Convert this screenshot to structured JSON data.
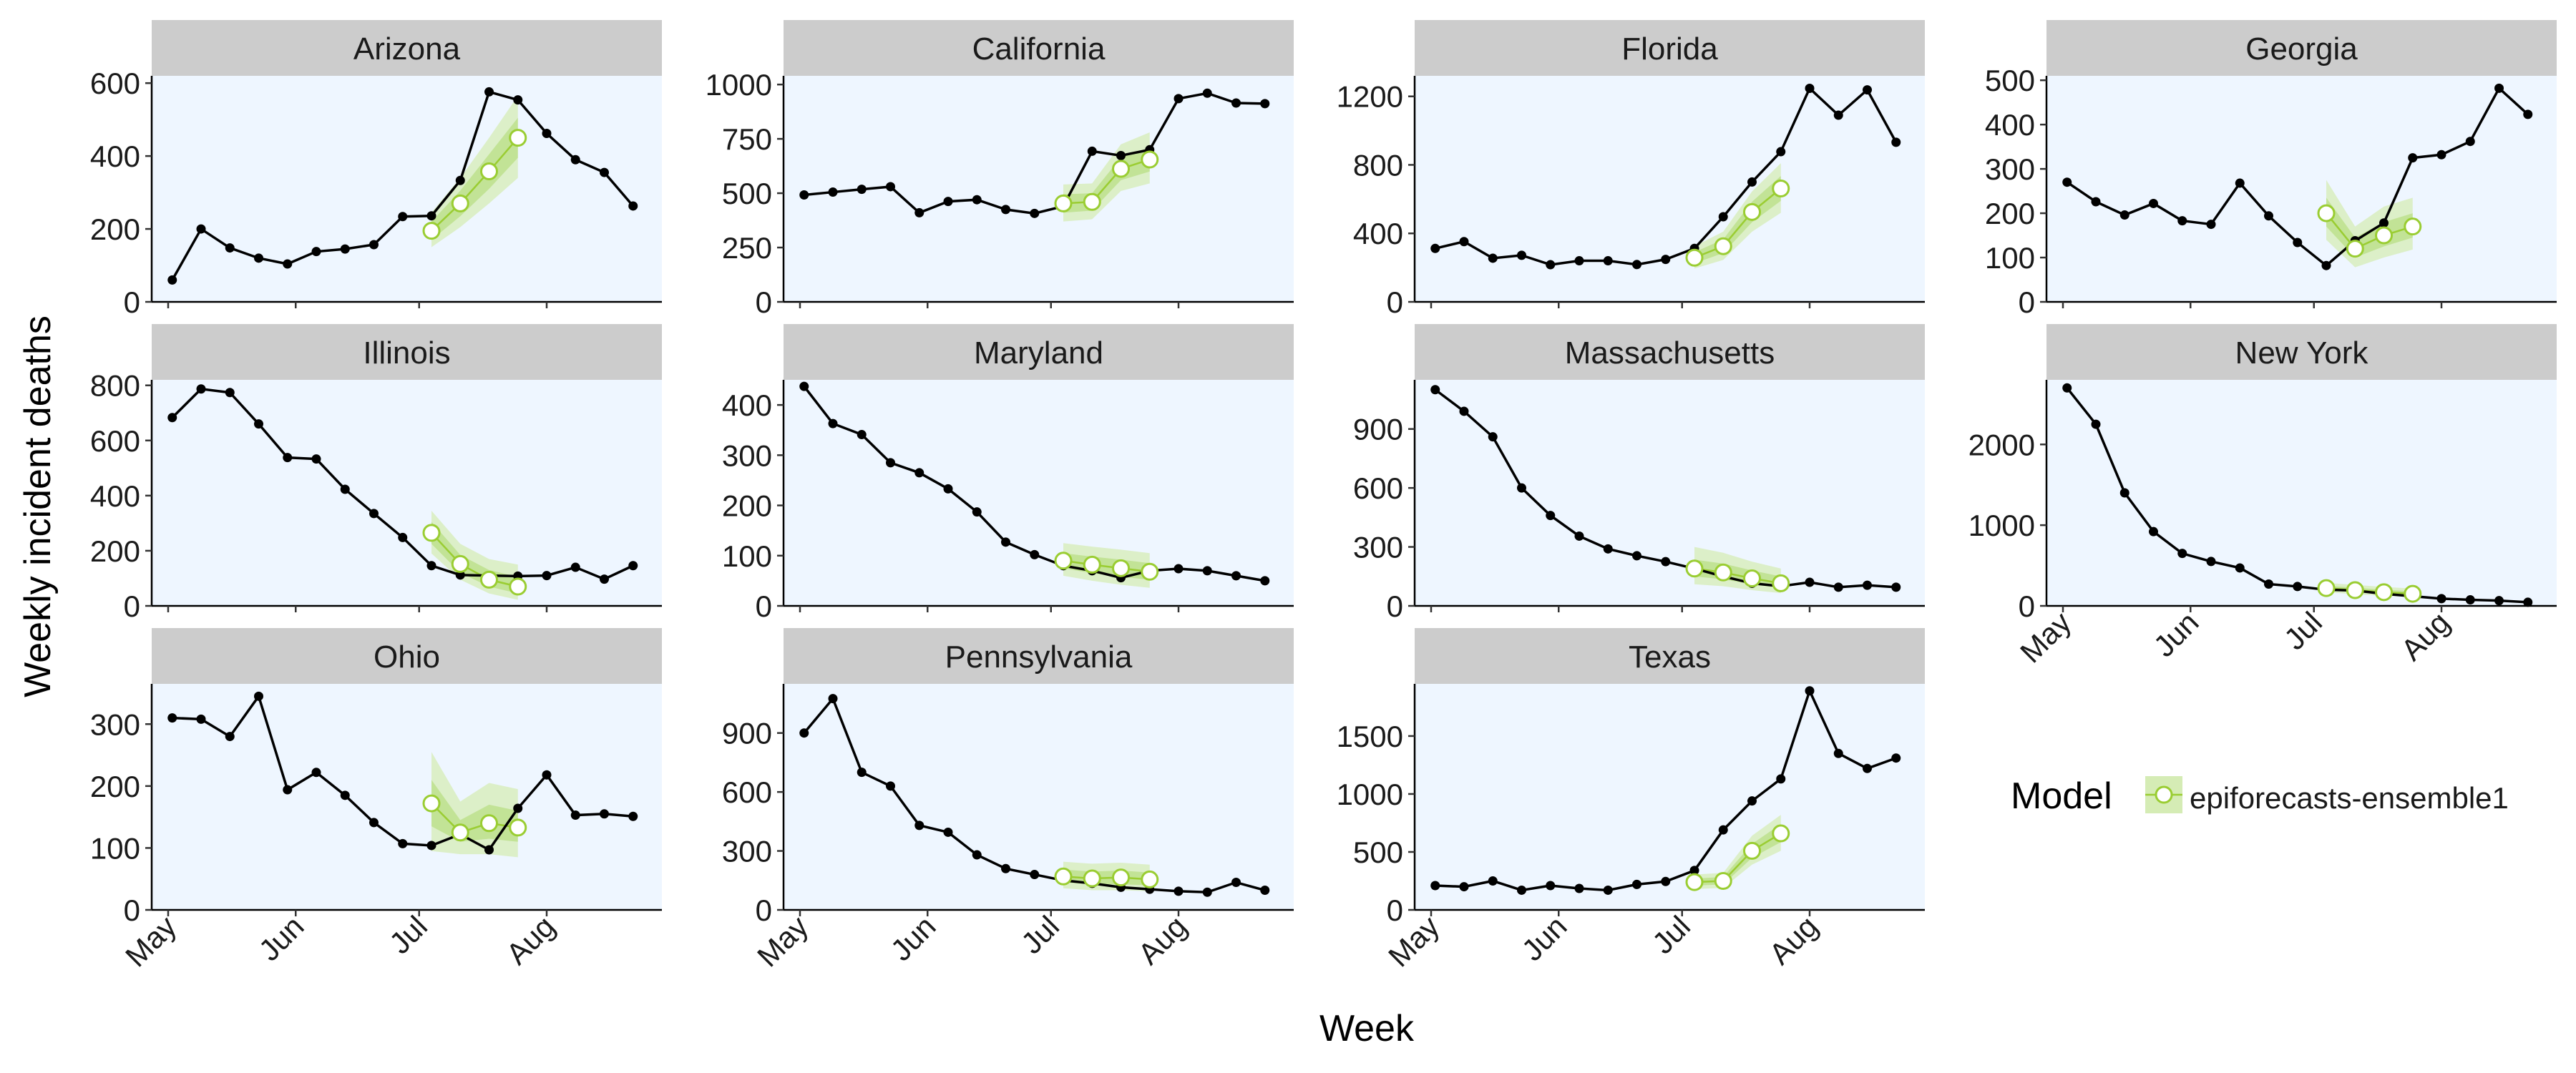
{
  "chart_data": {
    "type": "line",
    "xlabel": "Week",
    "ylabel": "Weekly incident deaths",
    "x_tick_labels": [
      "May",
      "Jun",
      "Jul",
      "Aug"
    ],
    "x_tick_dates": [
      "2020-05-01",
      "2020-06-01",
      "2020-07-01",
      "2020-08-01"
    ],
    "x_range": [
      "2020-04-27",
      "2020-08-29"
    ],
    "observed_dates": [
      "2020-05-02",
      "2020-05-09",
      "2020-05-16",
      "2020-05-23",
      "2020-05-30",
      "2020-06-06",
      "2020-06-13",
      "2020-06-20",
      "2020-06-27",
      "2020-07-04",
      "2020-07-11",
      "2020-07-18",
      "2020-07-25",
      "2020-08-01",
      "2020-08-08",
      "2020-08-15",
      "2020-08-22"
    ],
    "forecast_dates": [
      "2020-07-04",
      "2020-07-11",
      "2020-07-18",
      "2020-07-25"
    ],
    "legend": {
      "title": "Model",
      "label": "epiforecasts-ensemble1",
      "position": "right"
    },
    "colors": {
      "observed": "#000000",
      "forecast": "#9acd32",
      "band_outer": "#d5ecb5",
      "band_inner": "#b9df85",
      "panel_bg": "#eef6ff",
      "strip_bg": "#cccccc"
    },
    "panels": [
      {
        "state": "Arizona",
        "ylim": [
          0,
          620
        ],
        "yticks": [
          0,
          200,
          400,
          600
        ],
        "observed": [
          60,
          200,
          148,
          120,
          104,
          138,
          145,
          157,
          234,
          236,
          333,
          576,
          554,
          462,
          390,
          355,
          263
        ],
        "forecast": [
          195,
          270,
          358,
          450
        ],
        "lower50": [
          170,
          235,
          310,
          395
        ],
        "upper50": [
          220,
          305,
          405,
          505
        ],
        "lower90": [
          150,
          205,
          270,
          340
        ],
        "upper90": [
          245,
          340,
          450,
          565
        ]
      },
      {
        "state": "California",
        "ylim": [
          0,
          1040
        ],
        "yticks": [
          0,
          250,
          500,
          750,
          1000
        ],
        "observed": [
          492,
          505,
          518,
          530,
          410,
          462,
          470,
          425,
          407,
          440,
          693,
          673,
          700,
          935,
          960,
          915,
          912
        ],
        "forecast": [
          453,
          460,
          612,
          655
        ],
        "lower50": [
          410,
          420,
          560,
          600
        ],
        "upper50": [
          495,
          500,
          665,
          710
        ],
        "lower90": [
          370,
          380,
          510,
          545
        ],
        "upper90": [
          540,
          545,
          725,
          780
        ]
      },
      {
        "state": "Florida",
        "ylim": [
          0,
          1320
        ],
        "yticks": [
          0,
          400,
          800,
          1200
        ],
        "observed": [
          312,
          352,
          255,
          272,
          217,
          240,
          240,
          218,
          248,
          312,
          497,
          700,
          877,
          1247,
          1090,
          1238,
          932
        ],
        "forecast": [
          258,
          325,
          525,
          662
        ],
        "lower50": [
          225,
          285,
          465,
          590
        ],
        "upper50": [
          290,
          365,
          585,
          735
        ],
        "lower90": [
          195,
          245,
          410,
          520
        ],
        "upper90": [
          325,
          410,
          645,
          810
        ]
      },
      {
        "state": "Georgia",
        "ylim": [
          0,
          510
        ],
        "yticks": [
          0,
          100,
          200,
          300,
          400,
          500
        ],
        "observed": [
          270,
          226,
          196,
          222,
          183,
          175,
          268,
          194,
          134,
          82,
          138,
          178,
          325,
          332,
          362,
          482,
          423
        ],
        "forecast": [
          200,
          120,
          150,
          170
        ],
        "lower50": [
          170,
          100,
          125,
          145
        ],
        "upper50": [
          235,
          145,
          180,
          200
        ],
        "lower90": [
          140,
          78,
          100,
          118
        ],
        "upper90": [
          275,
          170,
          215,
          235
        ]
      },
      {
        "state": "Illinois",
        "ylim": [
          0,
          820
        ],
        "yticks": [
          0,
          200,
          400,
          600,
          800
        ],
        "observed": [
          683,
          787,
          774,
          660,
          538,
          533,
          423,
          335,
          248,
          146,
          112,
          110,
          108,
          110,
          140,
          97,
          146
        ],
        "forecast": [
          265,
          152,
          95,
          70
        ],
        "lower50": [
          225,
          120,
          70,
          45
        ],
        "upper50": [
          305,
          185,
          130,
          105
        ],
        "lower90": [
          190,
          95,
          45,
          22
        ],
        "upper90": [
          345,
          225,
          170,
          150
        ]
      },
      {
        "state": "Maryland",
        "ylim": [
          0,
          450
        ],
        "yticks": [
          0,
          100,
          200,
          300,
          400
        ],
        "observed": [
          437,
          363,
          341,
          285,
          265,
          233,
          187,
          127,
          102,
          80,
          70,
          56,
          70,
          74,
          70,
          60,
          50
        ],
        "forecast": [
          90,
          82,
          75,
          68
        ],
        "lower50": [
          75,
          65,
          58,
          52
        ],
        "upper50": [
          105,
          98,
          92,
          85
        ],
        "lower90": [
          60,
          50,
          42,
          36
        ],
        "upper90": [
          125,
          118,
          112,
          105
        ]
      },
      {
        "state": "Massachusetts",
        "ylim": [
          0,
          1150
        ],
        "yticks": [
          0,
          300,
          600,
          900
        ],
        "observed": [
          1100,
          990,
          860,
          600,
          460,
          355,
          290,
          255,
          225,
          190,
          150,
          115,
          100,
          120,
          95,
          105,
          95
        ],
        "forecast": [
          190,
          170,
          140,
          115
        ],
        "lower50": [
          150,
          135,
          110,
          90
        ],
        "upper50": [
          235,
          215,
          180,
          150
        ],
        "lower90": [
          110,
          100,
          80,
          65
        ],
        "upper90": [
          300,
          270,
          225,
          190
        ]
      },
      {
        "state": "New York",
        "ylim": [
          0,
          2800
        ],
        "yticks": [
          0,
          1000,
          2000
        ],
        "observed": [
          2700,
          2250,
          1400,
          920,
          650,
          550,
          470,
          270,
          240,
          200,
          190,
          150,
          120,
          90,
          75,
          65,
          45
        ],
        "forecast": [
          220,
          195,
          170,
          150
        ],
        "lower50": [
          195,
          170,
          148,
          130
        ],
        "upper50": [
          250,
          225,
          200,
          180
        ],
        "lower90": [
          170,
          145,
          125,
          110
        ],
        "upper90": [
          285,
          260,
          235,
          215
        ]
      },
      {
        "state": "Ohio",
        "ylim": [
          0,
          365
        ],
        "yticks": [
          0,
          100,
          200,
          300
        ],
        "observed": [
          310,
          308,
          280,
          345,
          194,
          222,
          185,
          141,
          107,
          104,
          122,
          97,
          164,
          218,
          153,
          155,
          151
        ],
        "forecast": [
          172,
          125,
          140,
          133
        ],
        "lower50": [
          135,
          110,
          115,
          110
        ],
        "upper50": [
          210,
          145,
          170,
          160
        ],
        "lower90": [
          95,
          90,
          90,
          85
        ],
        "upper90": [
          255,
          175,
          205,
          195
        ]
      },
      {
        "state": "Pennsylvania",
        "ylim": [
          0,
          1150
        ],
        "yticks": [
          0,
          300,
          600,
          900
        ],
        "observed": [
          900,
          1075,
          700,
          630,
          430,
          395,
          280,
          210,
          180,
          150,
          135,
          115,
          105,
          95,
          90,
          140,
          100
        ],
        "forecast": [
          170,
          160,
          165,
          155
        ],
        "lower50": [
          140,
          130,
          130,
          125
        ],
        "upper50": [
          205,
          195,
          200,
          190
        ],
        "lower90": [
          110,
          100,
          100,
          95
        ],
        "upper90": [
          245,
          235,
          240,
          230
        ]
      },
      {
        "state": "Texas",
        "ylim": [
          0,
          1950
        ],
        "yticks": [
          0,
          500,
          1000,
          1500
        ],
        "observed": [
          210,
          200,
          250,
          170,
          210,
          185,
          170,
          220,
          245,
          340,
          690,
          940,
          1130,
          1890,
          1350,
          1220,
          1310
        ],
        "forecast": [
          240,
          250,
          510,
          660
        ],
        "lower50": [
          210,
          220,
          450,
          585
        ],
        "upper50": [
          270,
          285,
          570,
          740
        ],
        "lower90": [
          180,
          190,
          390,
          510
        ],
        "upper90": [
          305,
          320,
          640,
          820
        ]
      }
    ]
  }
}
